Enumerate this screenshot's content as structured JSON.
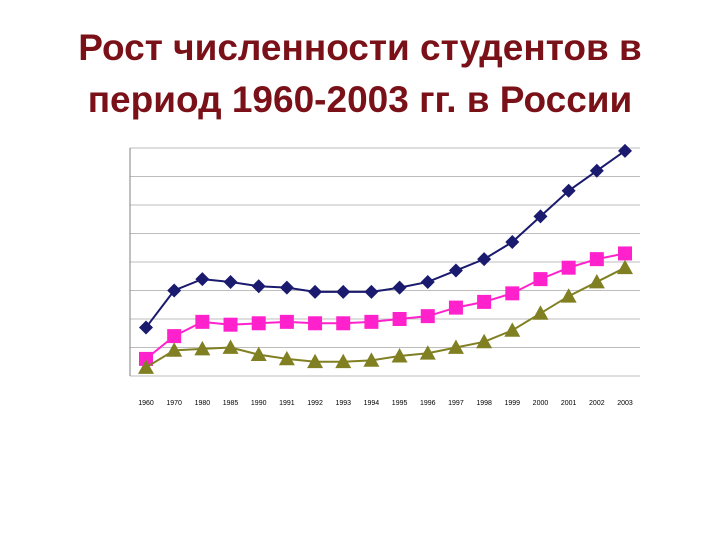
{
  "title_lines": [
    "Рост численности студентов в",
    "период 1960-2003 гг. в России"
  ],
  "chart_data": {
    "type": "line",
    "title": "Рост численности студентов в период 1960-2003 гг. в России",
    "categories": [
      "1960",
      "1970",
      "1980",
      "1985",
      "1990",
      "1991",
      "1992",
      "1993",
      "1994",
      "1995",
      "1996",
      "1997",
      "1998",
      "1999",
      "2000",
      "2001",
      "2002",
      "2003"
    ],
    "ylim": [
      0,
      8
    ],
    "grid": true,
    "legend": "none",
    "series": [
      {
        "marker": "diamond",
        "color": "#1a1a6e",
        "values": [
          1.7,
          3.0,
          3.4,
          3.3,
          3.15,
          3.1,
          2.95,
          2.95,
          2.95,
          3.1,
          3.3,
          3.7,
          4.1,
          4.7,
          5.6,
          6.5,
          7.2,
          7.9
        ]
      },
      {
        "marker": "square",
        "color": "#ff22cc",
        "values": [
          0.6,
          1.4,
          1.9,
          1.8,
          1.85,
          1.9,
          1.85,
          1.85,
          1.9,
          2.0,
          2.1,
          2.4,
          2.6,
          2.9,
          3.4,
          3.8,
          4.1,
          4.3
        ]
      },
      {
        "marker": "triangle",
        "color": "#808023",
        "values": [
          0.3,
          0.9,
          0.95,
          1.0,
          0.75,
          0.6,
          0.5,
          0.5,
          0.55,
          0.7,
          0.8,
          1.0,
          1.2,
          1.6,
          2.2,
          2.8,
          3.3,
          3.8
        ]
      }
    ]
  }
}
